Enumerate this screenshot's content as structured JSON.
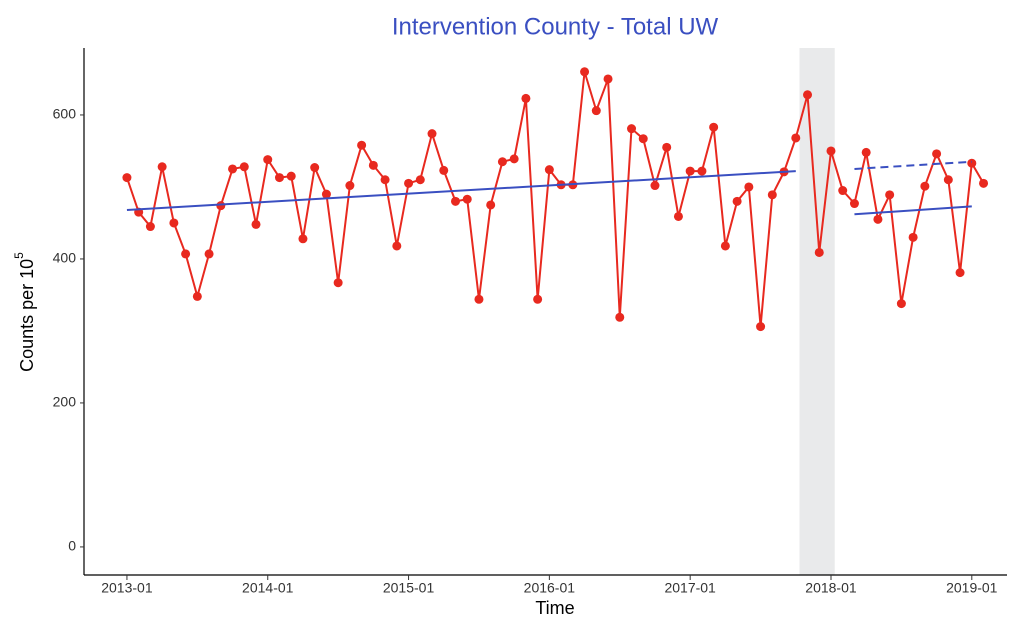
{
  "chart_data": {
    "type": "line",
    "title": "Intervention County - Total UW",
    "xlabel": "Time",
    "ylabel": "Counts per 10",
    "ylabel_sup": "5",
    "x": [
      "2013-01",
      "2013-02",
      "2013-03",
      "2013-04",
      "2013-05",
      "2013-06",
      "2013-07",
      "2013-08",
      "2013-09",
      "2013-10",
      "2013-11",
      "2013-12",
      "2014-01",
      "2014-02",
      "2014-03",
      "2014-04",
      "2014-05",
      "2014-06",
      "2014-07",
      "2014-08",
      "2014-09",
      "2014-10",
      "2014-11",
      "2014-12",
      "2015-01",
      "2015-02",
      "2015-03",
      "2015-04",
      "2015-05",
      "2015-06",
      "2015-07",
      "2015-08",
      "2015-09",
      "2015-10",
      "2015-11",
      "2015-12",
      "2016-01",
      "2016-02",
      "2016-03",
      "2016-04",
      "2016-05",
      "2016-06",
      "2016-07",
      "2016-08",
      "2016-09",
      "2016-10",
      "2016-11",
      "2016-12",
      "2017-01",
      "2017-02",
      "2017-03",
      "2017-04",
      "2017-05",
      "2017-06",
      "2017-07",
      "2017-08",
      "2017-09",
      "2017-10",
      "2017-11",
      "2017-12",
      "2018-01",
      "2018-02",
      "2018-03",
      "2018-04",
      "2018-05",
      "2018-06",
      "2018-07",
      "2018-08",
      "2018-09",
      "2018-10",
      "2018-11",
      "2018-12",
      "2019-01",
      "2019-02"
    ],
    "series": [
      {
        "color": "#e8291f",
        "values": [
          513,
          465,
          445,
          528,
          450,
          407,
          348,
          407,
          474,
          525,
          528,
          448,
          538,
          513,
          515,
          428,
          527,
          490,
          367,
          502,
          558,
          530,
          510,
          418,
          505,
          510,
          574,
          523,
          480,
          483,
          344,
          475,
          535,
          539,
          623,
          344,
          524,
          503,
          503,
          660,
          606,
          650,
          319,
          581,
          567,
          502,
          555,
          459,
          522,
          522,
          583,
          418,
          480,
          500,
          306,
          489,
          521,
          568,
          628,
          409,
          550,
          495,
          477,
          548,
          455,
          489,
          338,
          430,
          501,
          546,
          510,
          381,
          533,
          505
        ]
      }
    ],
    "trends": [
      {
        "x": [
          "2013-01",
          "2017-10"
        ],
        "values": [
          468,
          522
        ],
        "color": "#3a4fc1",
        "dashed": false
      },
      {
        "x": [
          "2018-03",
          "2019-01"
        ],
        "values": [
          462,
          473
        ],
        "color": "#3a4fc1",
        "dashed": false
      },
      {
        "x": [
          "2018-03",
          "2019-01"
        ],
        "values": [
          525,
          535
        ],
        "color": "#3a4fc1",
        "dashed": true
      }
    ],
    "shaded": {
      "x": [
        "2017-11",
        "2018-02"
      ],
      "color": "#e9eaeb"
    },
    "xlim": [
      "2012-09",
      "2019-04"
    ],
    "xticks": [
      "2013-01",
      "2014-01",
      "2015-01",
      "2016-01",
      "2017-01",
      "2018-01",
      "2019-01"
    ],
    "ylim": [
      -39,
      693
    ],
    "yticks": [
      0,
      200,
      400,
      600
    ],
    "title_color": "#3a4fc1"
  }
}
